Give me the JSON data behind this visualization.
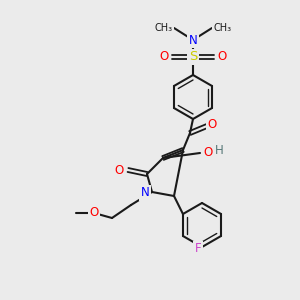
{
  "bg": "#ebebeb",
  "C": "#1a1a1a",
  "N": "#0000ff",
  "O": "#ff0000",
  "S": "#cccc00",
  "F": "#cc44cc",
  "H": "#557777",
  "figsize": [
    3.0,
    3.0
  ],
  "dpi": 100
}
